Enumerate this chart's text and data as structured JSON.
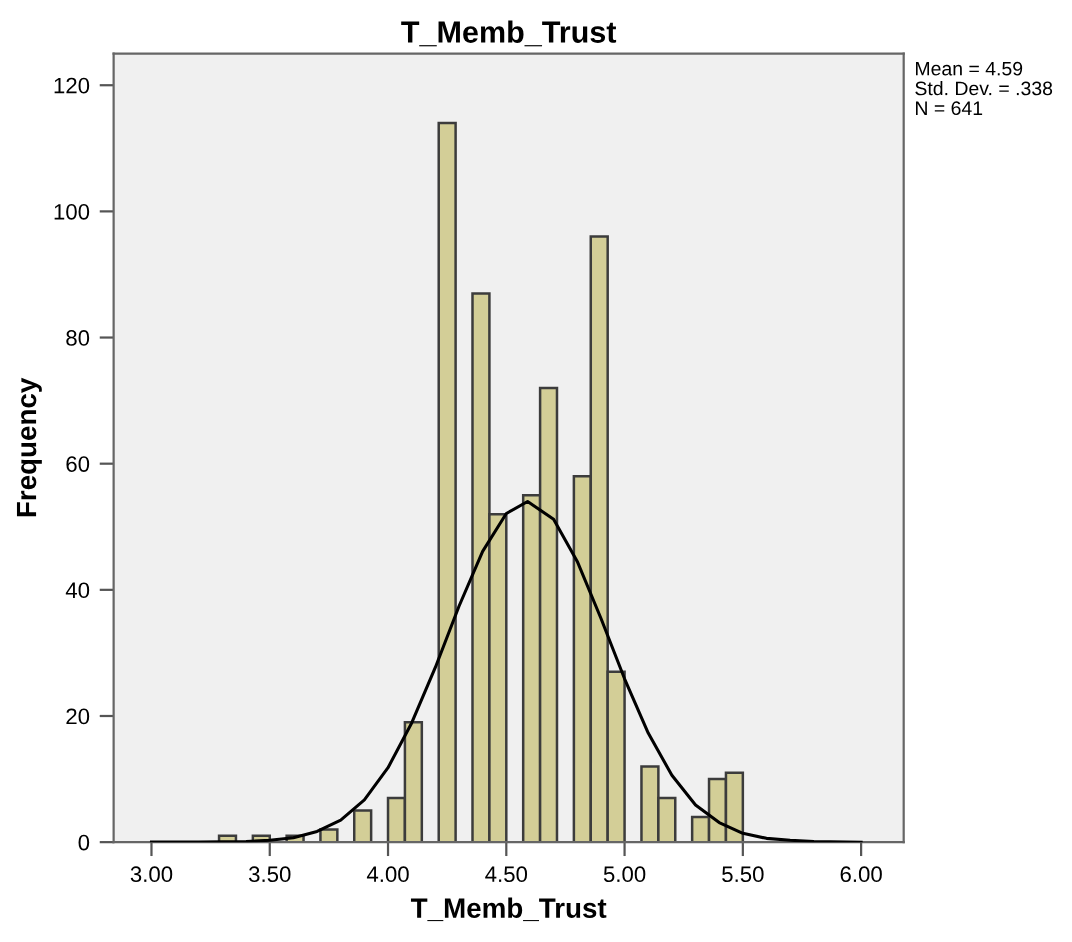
{
  "chart_data": {
    "type": "histogram",
    "title": "T_Memb_Trust",
    "xlabel": "T_Memb_Trust",
    "ylabel": "Frequency",
    "bins": [
      3.2857,
      3.3571,
      3.4286,
      3.5,
      3.5714,
      3.6429,
      3.7143,
      3.7857,
      3.8571,
      3.9286,
      4.0,
      4.0714,
      4.1429,
      4.2143,
      4.2857,
      4.3571,
      4.4286,
      4.5,
      4.5714,
      4.6429,
      4.7143,
      4.7857,
      4.8571,
      4.9286,
      5.0,
      5.0714,
      5.1429,
      5.2143,
      5.2857,
      5.3571,
      5.4286,
      5.5
    ],
    "series": [
      {
        "type": "histogram",
        "color": "#d3ce97",
        "values": [
          1,
          0,
          1,
          0,
          1,
          0,
          2,
          0,
          5,
          0,
          7,
          19,
          0,
          114,
          0,
          87,
          52,
          0,
          55,
          72,
          0,
          58,
          96,
          27,
          0,
          12,
          7,
          0,
          4,
          10,
          11
        ]
      },
      {
        "type": "line",
        "color": "#000000",
        "x": [
          3.0,
          3.2,
          3.4,
          3.5,
          3.6,
          3.7,
          3.8,
          3.9,
          4.0,
          4.1,
          4.2,
          4.3,
          4.4,
          4.5,
          4.59,
          4.7,
          4.8,
          4.9,
          5.0,
          5.1,
          5.2,
          5.3,
          5.4,
          5.5,
          5.6,
          5.7,
          5.8,
          6.0
        ],
        "values": [
          0.0,
          0.0,
          0.1,
          0.3,
          0.7,
          1.7,
          3.5,
          6.7,
          11.8,
          18.9,
          27.7,
          37.4,
          46.1,
          52.1,
          54.0,
          51.2,
          44.5,
          35.5,
          25.9,
          17.3,
          10.6,
          5.9,
          3.1,
          1.4,
          0.6,
          0.3,
          0.1,
          0.0
        ]
      }
    ],
    "xlim": [
      2.84,
      6.18
    ],
    "ylim": [
      0,
      125
    ],
    "xticks": [
      {
        "value": 3,
        "label": "3.00"
      },
      {
        "value": 3.5,
        "label": "3.50"
      },
      {
        "value": 4,
        "label": "4.00"
      },
      {
        "value": 4.5,
        "label": "4.50"
      },
      {
        "value": 5,
        "label": "5.00"
      },
      {
        "value": 5.5,
        "label": "5.50"
      },
      {
        "value": 6,
        "label": "6.00"
      }
    ],
    "yticks": [
      0,
      20,
      40,
      60,
      80,
      100,
      120
    ],
    "grid": false,
    "marker": "none",
    "line_style": "solid",
    "annotations": [
      "Mean = 4.59",
      "Std. Dev. = .338",
      "N = 641"
    ]
  }
}
